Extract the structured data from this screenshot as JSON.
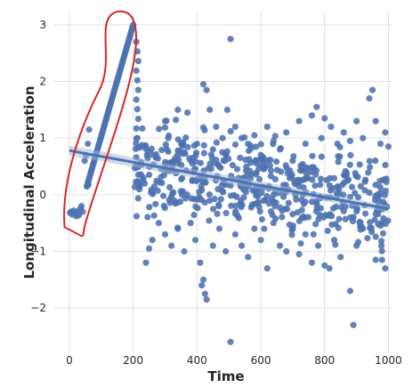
{
  "chart_data": {
    "type": "scatter",
    "xlabel": "Time",
    "ylabel": "Longitudinal Acceleration",
    "xlim": [
      -50,
      1010
    ],
    "ylim": [
      -2.8,
      3.25
    ],
    "x_ticks": [
      0,
      200,
      400,
      600,
      800,
      1000
    ],
    "y_ticks": [
      -2,
      -1,
      0,
      1,
      2,
      3
    ],
    "x_tick_labels": [
      "0",
      "200",
      "400",
      "600",
      "800",
      "1000"
    ],
    "y_tick_labels": [
      "−2",
      "−1",
      "0",
      "1",
      "2",
      "3"
    ],
    "grid": true,
    "point_color": "#4c72b0",
    "regression_line": {
      "x": [
        0,
        1000
      ],
      "y": [
        0.78,
        -0.25
      ],
      "color": "#4c72b0"
    },
    "annotation": {
      "shape": "freehand-loop",
      "color": "#d62728",
      "x_range": [
        -15,
        210
      ],
      "y_range": [
        -0.7,
        3.2
      ]
    },
    "series": [
      {
        "points": [
          [
            2,
            -0.32
          ],
          [
            6,
            -0.3
          ],
          [
            10,
            -0.35
          ],
          [
            14,
            -0.28
          ],
          [
            18,
            -0.33
          ],
          [
            22,
            -0.38
          ],
          [
            26,
            -0.3
          ],
          [
            30,
            -0.36
          ],
          [
            34,
            -0.25
          ],
          [
            38,
            -0.2
          ],
          [
            42,
            -0.3
          ],
          [
            55,
            0.15
          ],
          [
            60,
            0.18
          ],
          [
            58,
            0.9
          ],
          [
            62,
            1.15
          ],
          [
            48,
            0.6
          ],
          [
            52,
            0.7
          ],
          [
            300,
            1.3
          ],
          [
            310,
            1.0
          ],
          [
            340,
            1.5
          ],
          [
            355,
            0.9
          ],
          [
            370,
            1.45
          ],
          [
            380,
            0.6
          ],
          [
            400,
            0.9
          ],
          [
            420,
            1.95
          ],
          [
            430,
            1.85
          ],
          [
            440,
            1.5
          ],
          [
            450,
            0.8
          ],
          [
            460,
            1.2
          ],
          [
            470,
            0.5
          ],
          [
            480,
            1.0
          ],
          [
            495,
            1.5
          ],
          [
            505,
            2.75
          ],
          [
            520,
            1.2
          ],
          [
            540,
            1.0
          ],
          [
            560,
            0.9
          ],
          [
            580,
            1.05
          ],
          [
            600,
            0.7
          ],
          [
            620,
            1.2
          ],
          [
            640,
            0.95
          ],
          [
            660,
            0.8
          ],
          [
            680,
            1.1
          ],
          [
            700,
            0.6
          ],
          [
            720,
            1.3
          ],
          [
            740,
            0.9
          ],
          [
            760,
            1.4
          ],
          [
            775,
            1.55
          ],
          [
            790,
            1.0
          ],
          [
            800,
            1.35
          ],
          [
            820,
            1.2
          ],
          [
            840,
            0.9
          ],
          [
            860,
            1.1
          ],
          [
            880,
            0.95
          ],
          [
            900,
            1.3
          ],
          [
            920,
            1.0
          ],
          [
            940,
            1.7
          ],
          [
            950,
            1.85
          ],
          [
            960,
            1.3
          ],
          [
            975,
            0.9
          ],
          [
            990,
            1.1
          ],
          [
            1000,
            0.85
          ],
          [
            240,
            -1.2
          ],
          [
            250,
            -0.95
          ],
          [
            260,
            -0.8
          ],
          [
            280,
            -0.5
          ],
          [
            300,
            -0.7
          ],
          [
            320,
            -0.9
          ],
          [
            340,
            -0.6
          ],
          [
            360,
            -1.0
          ],
          [
            380,
            -0.5
          ],
          [
            395,
            -0.8
          ],
          [
            410,
            -1.2
          ],
          [
            420,
            -1.5
          ],
          [
            425,
            -1.75
          ],
          [
            430,
            -1.85
          ],
          [
            415,
            -1.6
          ],
          [
            450,
            -0.9
          ],
          [
            470,
            -0.6
          ],
          [
            490,
            -1.0
          ],
          [
            505,
            -2.6
          ],
          [
            520,
            -0.7
          ],
          [
            540,
            -0.9
          ],
          [
            560,
            -1.1
          ],
          [
            580,
            -0.6
          ],
          [
            600,
            -0.8
          ],
          [
            620,
            -1.3
          ],
          [
            640,
            -0.5
          ],
          [
            660,
            -0.9
          ],
          [
            680,
            -1.0
          ],
          [
            700,
            -0.6
          ],
          [
            720,
            -1.05
          ],
          [
            740,
            -0.7
          ],
          [
            760,
            -1.2
          ],
          [
            780,
            -0.9
          ],
          [
            800,
            -1.25
          ],
          [
            815,
            -1.3
          ],
          [
            830,
            -0.8
          ],
          [
            850,
            -1.1
          ],
          [
            880,
            -1.7
          ],
          [
            890,
            -2.3
          ],
          [
            900,
            -0.9
          ],
          [
            920,
            -0.6
          ],
          [
            960,
            -1.15
          ],
          [
            980,
            -1.15
          ],
          [
            990,
            -1.3
          ]
        ]
      }
    ]
  }
}
